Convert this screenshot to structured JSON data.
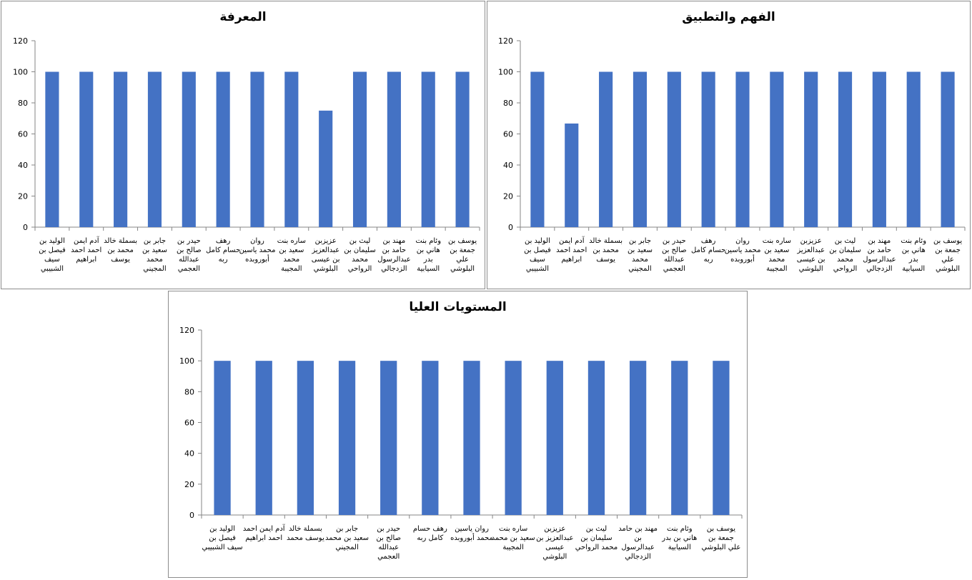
{
  "chart_data": [
    {
      "type": "bar",
      "title": "المعرفة",
      "categories": [
        [
          "الوليد بن",
          "فيصل بن",
          "سيف",
          "الشبيبي"
        ],
        [
          "آدم ايمن",
          "احمد احمد",
          "ابراهيم"
        ],
        [
          "بسملة خالد",
          "محمد بن",
          "يوسف"
        ],
        [
          "جابر بن",
          "سعيد بن",
          "محمد",
          "المجيني"
        ],
        [
          "حيدر بن",
          "صالح بن",
          "عبدالله",
          "العجمي"
        ],
        [
          "رهف",
          "حسام كامل",
          "ربه"
        ],
        [
          "روان",
          "محمد ياسين",
          "أبوروبده"
        ],
        [
          "ساره بنت",
          "سعيد بن",
          "محمد",
          "المجيبة"
        ],
        [
          "عزيزبن",
          "عبدالعزيز",
          "بن عيسى",
          "البلوشي"
        ],
        [
          "ليث بن",
          "سليمان بن",
          "محمد",
          "الرواحي"
        ],
        [
          "مهند بن",
          "حامد بن",
          "عبدالرسول",
          "الزدجالي"
        ],
        [
          "وئام بنت",
          "هاني بن",
          "بدر",
          "السيابية"
        ],
        [
          "يوسف بن",
          "جمعة بن",
          "علي",
          "البلوشي"
        ]
      ],
      "values": [
        100,
        100,
        100,
        100,
        100,
        100,
        100,
        100,
        75,
        100,
        100,
        100,
        100
      ],
      "ylim": [
        0,
        120
      ],
      "yticks": [
        "0",
        "20",
        "40",
        "60",
        "80",
        "100",
        "120"
      ],
      "bar_color": "#4472c4",
      "legend": "none",
      "grid": false
    },
    {
      "type": "bar",
      "title": "الفهم والتطبيق",
      "categories": [
        [
          "الوليد بن",
          "فيصل بن",
          "سيف",
          "الشبيبي"
        ],
        [
          "آدم ايمن",
          "احمد احمد",
          "ابراهيم"
        ],
        [
          "بسملة خالد",
          "محمد بن",
          "يوسف"
        ],
        [
          "جابر بن",
          "سعيد بن",
          "محمد",
          "المجيني"
        ],
        [
          "حيدر بن",
          "صالح بن",
          "عبدالله",
          "العجمي"
        ],
        [
          "رهف",
          "حسام كامل",
          "ربه"
        ],
        [
          "روان",
          "محمد ياسين",
          "أبوروبده"
        ],
        [
          "ساره بنت",
          "سعيد بن",
          "محمد",
          "المجيبة"
        ],
        [
          "عزيزبن",
          "عبدالعزيز",
          "بن عيسى",
          "البلوشي"
        ],
        [
          "ليث بن",
          "سليمان بن",
          "محمد",
          "الرواحي"
        ],
        [
          "مهند بن",
          "حامد بن",
          "عبدالرسول",
          "الزدجالي"
        ],
        [
          "وئام بنت",
          "هاني بن",
          "بدر",
          "السيابية"
        ],
        [
          "يوسف بن",
          "جمعة بن",
          "علي",
          "البلوشي"
        ]
      ],
      "values": [
        100,
        66.7,
        100,
        100,
        100,
        100,
        100,
        100,
        100,
        100,
        100,
        100,
        100
      ],
      "ylim": [
        0,
        120
      ],
      "yticks": [
        "0",
        "20",
        "40",
        "60",
        "80",
        "100",
        "120"
      ],
      "bar_color": "#4472c4",
      "legend": "none",
      "grid": false
    },
    {
      "type": "bar",
      "title": "المستويات العليا",
      "categories": [
        [
          "الوليد بن",
          "فيصل بن",
          "سيف الشبيبي"
        ],
        [
          "آدم ايمن احمد",
          "احمد ابراهيم"
        ],
        [
          "بسملة خالد",
          "يوسف محمد"
        ],
        [
          "جابر بن",
          "سعيد بن محمد",
          "المجيني"
        ],
        [
          "حيدر بن",
          "صالح بن",
          "عبدالله",
          "العجمي"
        ],
        [
          "رهف حسام",
          "كامل ربه"
        ],
        [
          "روان ياسين",
          "محمد أبوروبده"
        ],
        [
          "ساره بنت",
          "سعيد بن محمد",
          "المجيبة"
        ],
        [
          "عزيزبن",
          "عبدالعزيز بن",
          "عيسى",
          "البلوشي"
        ],
        [
          "ليث بن",
          "سليمان بن",
          "محمد الرواحي"
        ],
        [
          "مهند بن حامد",
          "بن",
          "عبدالرسول",
          "الزدجالي"
        ],
        [
          "وئام بنت",
          "هاني بن بدر",
          "السيابية"
        ],
        [
          "يوسف بن",
          "جمعة بن",
          "علي البلوشي"
        ]
      ],
      "values": [
        100,
        100,
        100,
        100,
        100,
        100,
        100,
        100,
        100,
        100,
        100,
        100,
        100
      ],
      "ylim": [
        0,
        120
      ],
      "yticks": [
        "0",
        "20",
        "40",
        "60",
        "80",
        "100",
        "120"
      ],
      "bar_color": "#4472c4",
      "legend": "none",
      "grid": false
    }
  ]
}
